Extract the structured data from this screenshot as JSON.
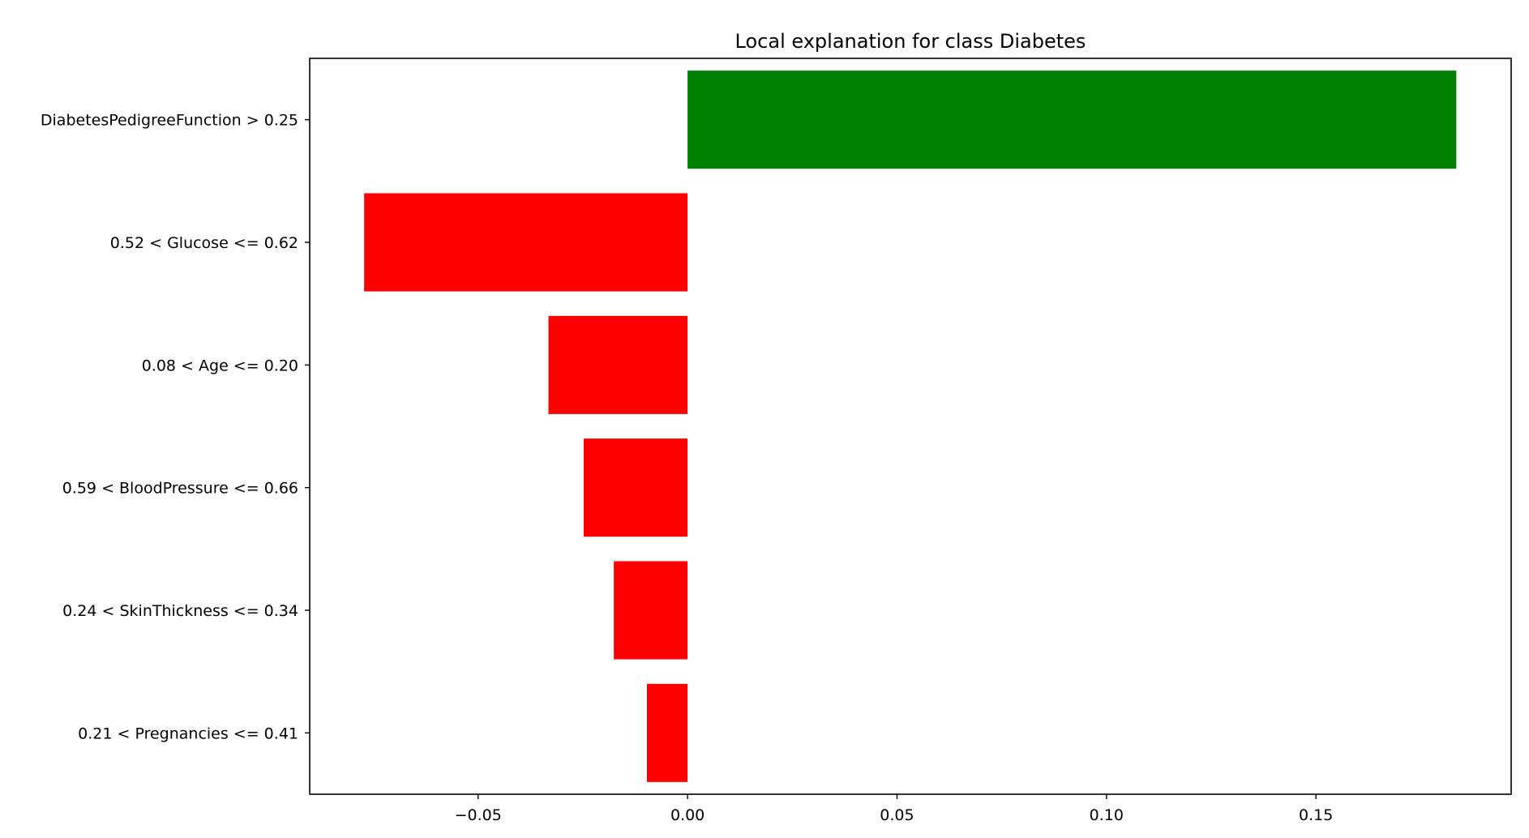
{
  "chart_data": {
    "type": "bar",
    "orientation": "horizontal",
    "title": "Local explanation for class Diabetes",
    "xlabel": "",
    "ylabel": "",
    "categories": [
      "DiabetesPedigreeFunction > 0.25",
      "0.52 < Glucose <= 0.62",
      "0.08 < Age <= 0.20",
      "0.59 < BloodPressure <= 0.66",
      "0.24 < SkinThickness <= 0.34",
      "0.21 < Pregnancies <= 0.41"
    ],
    "values": [
      0.1835,
      -0.0772,
      -0.0332,
      -0.0248,
      -0.0176,
      -0.0097
    ],
    "xlim": [
      -0.0902,
      0.1966
    ],
    "xticks": [
      -0.05,
      0.0,
      0.05,
      0.1,
      0.15
    ],
    "xtick_labels": [
      "−0.05",
      "0.00",
      "0.05",
      "0.10",
      "0.15"
    ],
    "grid": false,
    "legend": "none",
    "colors": {
      "positive": "#008000",
      "negative": "#ff0000",
      "axes": "#000000"
    }
  }
}
